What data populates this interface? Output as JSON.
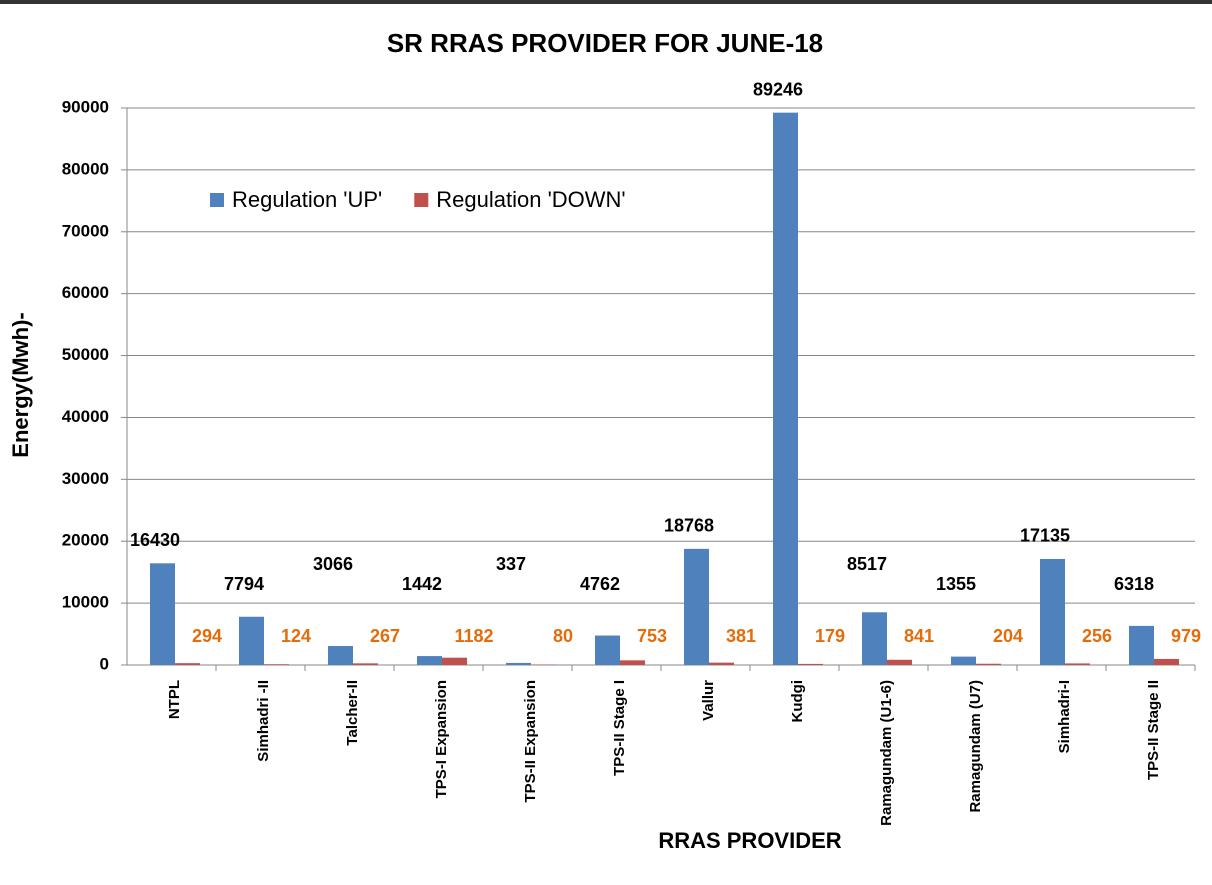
{
  "chart_data": {
    "type": "bar",
    "title": "SR RRAS PROVIDER FOR JUNE-18",
    "x_label": "RRAS PROVIDER",
    "y_label": "Energy(Mwh)-",
    "categories": [
      "NTPL",
      "Simhadri -II",
      "Talcher-II",
      "TPS-I Expansion",
      "TPS-II Expansion",
      "TPS-II Stage I",
      "Vallur",
      "Kudgi",
      "Ramagundam (U1-6)",
      "Ramagundam (U7)",
      "Simhadri-I",
      "TPS-II Stage II"
    ],
    "series": [
      {
        "name": "Regulation 'UP'",
        "color": "#4f81bd",
        "label_color": "#000000",
        "values": [
          16430,
          7794,
          3066,
          1442,
          337,
          4762,
          18768,
          89246,
          8517,
          1355,
          17135,
          6318
        ]
      },
      {
        "name": "Regulation 'DOWN'",
        "color": "#c0504d",
        "label_color": "#e46c0a",
        "values": [
          294,
          124,
          267,
          1182,
          80,
          753,
          381,
          179,
          841,
          204,
          256,
          979
        ]
      }
    ],
    "ylim": [
      0,
      90000
    ],
    "yticks": [
      0,
      10000,
      20000,
      30000,
      40000,
      50000,
      60000,
      70000,
      80000,
      90000
    ],
    "grid": true,
    "legend": "top-left"
  }
}
